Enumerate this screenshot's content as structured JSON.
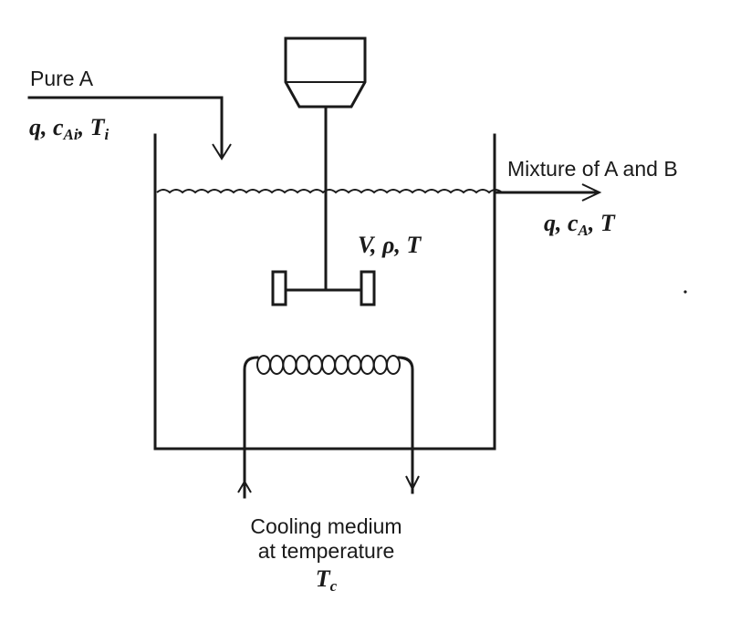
{
  "feed": {
    "label": "Pure A",
    "q": "q",
    "conc_var": "c",
    "conc_sub": "Ai",
    "temp_var": "T",
    "temp_sub": "i"
  },
  "outlet": {
    "label": "Mixture of A and B",
    "q": "q",
    "conc_var": "c",
    "conc_sub": "A",
    "temp_var": "T"
  },
  "reactor": {
    "label": "V, ρ, T"
  },
  "cooling": {
    "line1": "Cooling medium",
    "line2": "at temperature",
    "temp_var": "T",
    "temp_sub": "c"
  }
}
